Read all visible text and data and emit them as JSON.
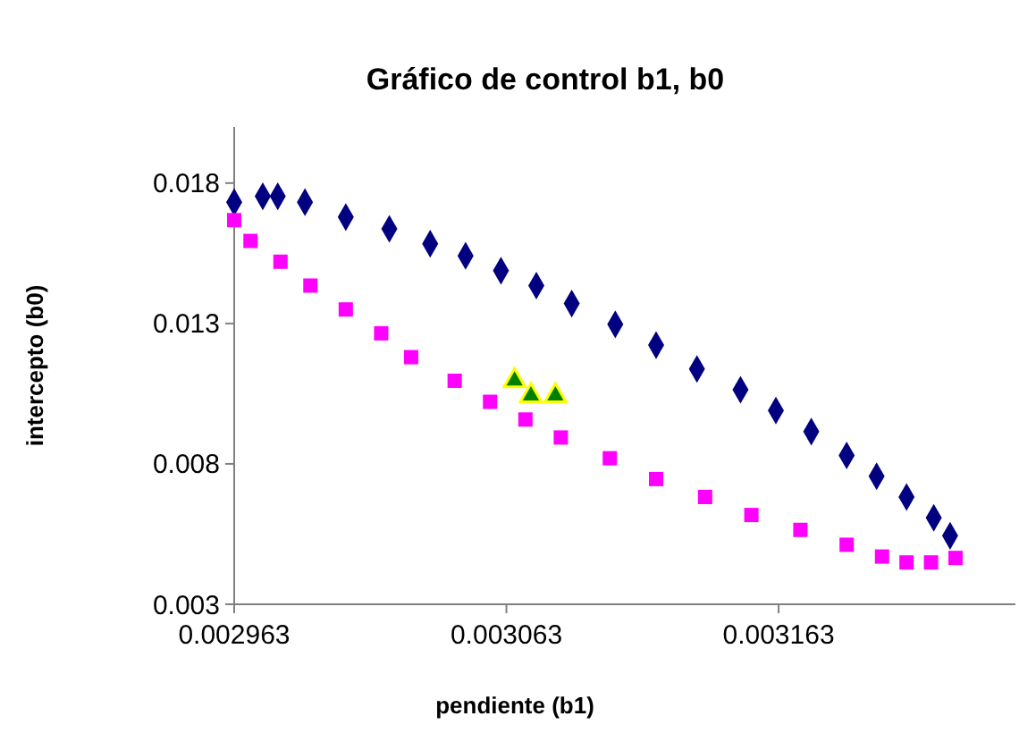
{
  "chart_data": {
    "type": "scatter",
    "title": "Gráfico de control b1, b0",
    "xlabel": "pendiente (b1)",
    "ylabel": "intercepto (b0)",
    "xlim": [
      0.002963,
      0.00325
    ],
    "xticks": [
      0.002963,
      0.003063,
      0.003163
    ],
    "ylim": [
      0.003,
      0.02
    ],
    "yticks": [
      0.003,
      0.008,
      0.013,
      0.018
    ],
    "series": [
      {
        "color": "#000080",
        "marker": "diamond",
        "x": [
          0.002963,
          0.0029735,
          0.002979,
          0.002989,
          0.003004,
          0.00302,
          0.003035,
          0.003048,
          0.003061,
          0.003074,
          0.003087,
          0.003103,
          0.003118,
          0.003133,
          0.003149,
          0.003162,
          0.003175,
          0.003188,
          0.003199,
          0.00321,
          0.00322,
          0.003226
        ],
        "values": [
          0.01732,
          0.01753,
          0.01753,
          0.01732,
          0.01679,
          0.01637,
          0.01584,
          0.01541,
          0.01488,
          0.01435,
          0.01371,
          0.01297,
          0.01223,
          0.01138,
          0.01064,
          0.0099,
          0.00915,
          0.0083,
          0.00756,
          0.00682,
          0.00608,
          0.00544
        ]
      },
      {
        "color": "#ff00ff",
        "marker": "square",
        "x": [
          0.002963,
          0.002969,
          0.00298,
          0.002991,
          0.003004,
          0.003017,
          0.003028,
          0.003044,
          0.003057,
          0.00307,
          0.003083,
          0.003101,
          0.003118,
          0.003136,
          0.003153,
          0.003171,
          0.003188,
          0.003201,
          0.00321,
          0.003219,
          0.003228
        ],
        "values": [
          0.01668,
          0.01594,
          0.0152,
          0.01435,
          0.0135,
          0.01265,
          0.0118,
          0.01096,
          0.01021,
          0.00958,
          0.00894,
          0.0082,
          0.00746,
          0.00682,
          0.00618,
          0.00565,
          0.00512,
          0.0047,
          0.00449,
          0.00449,
          0.00465
        ]
      },
      {
        "color": "#008000",
        "marker": "triangle",
        "x": [
          0.003066,
          0.003072,
          0.003081
        ],
        "values": [
          0.01096,
          0.01043,
          0.01043
        ]
      }
    ]
  }
}
